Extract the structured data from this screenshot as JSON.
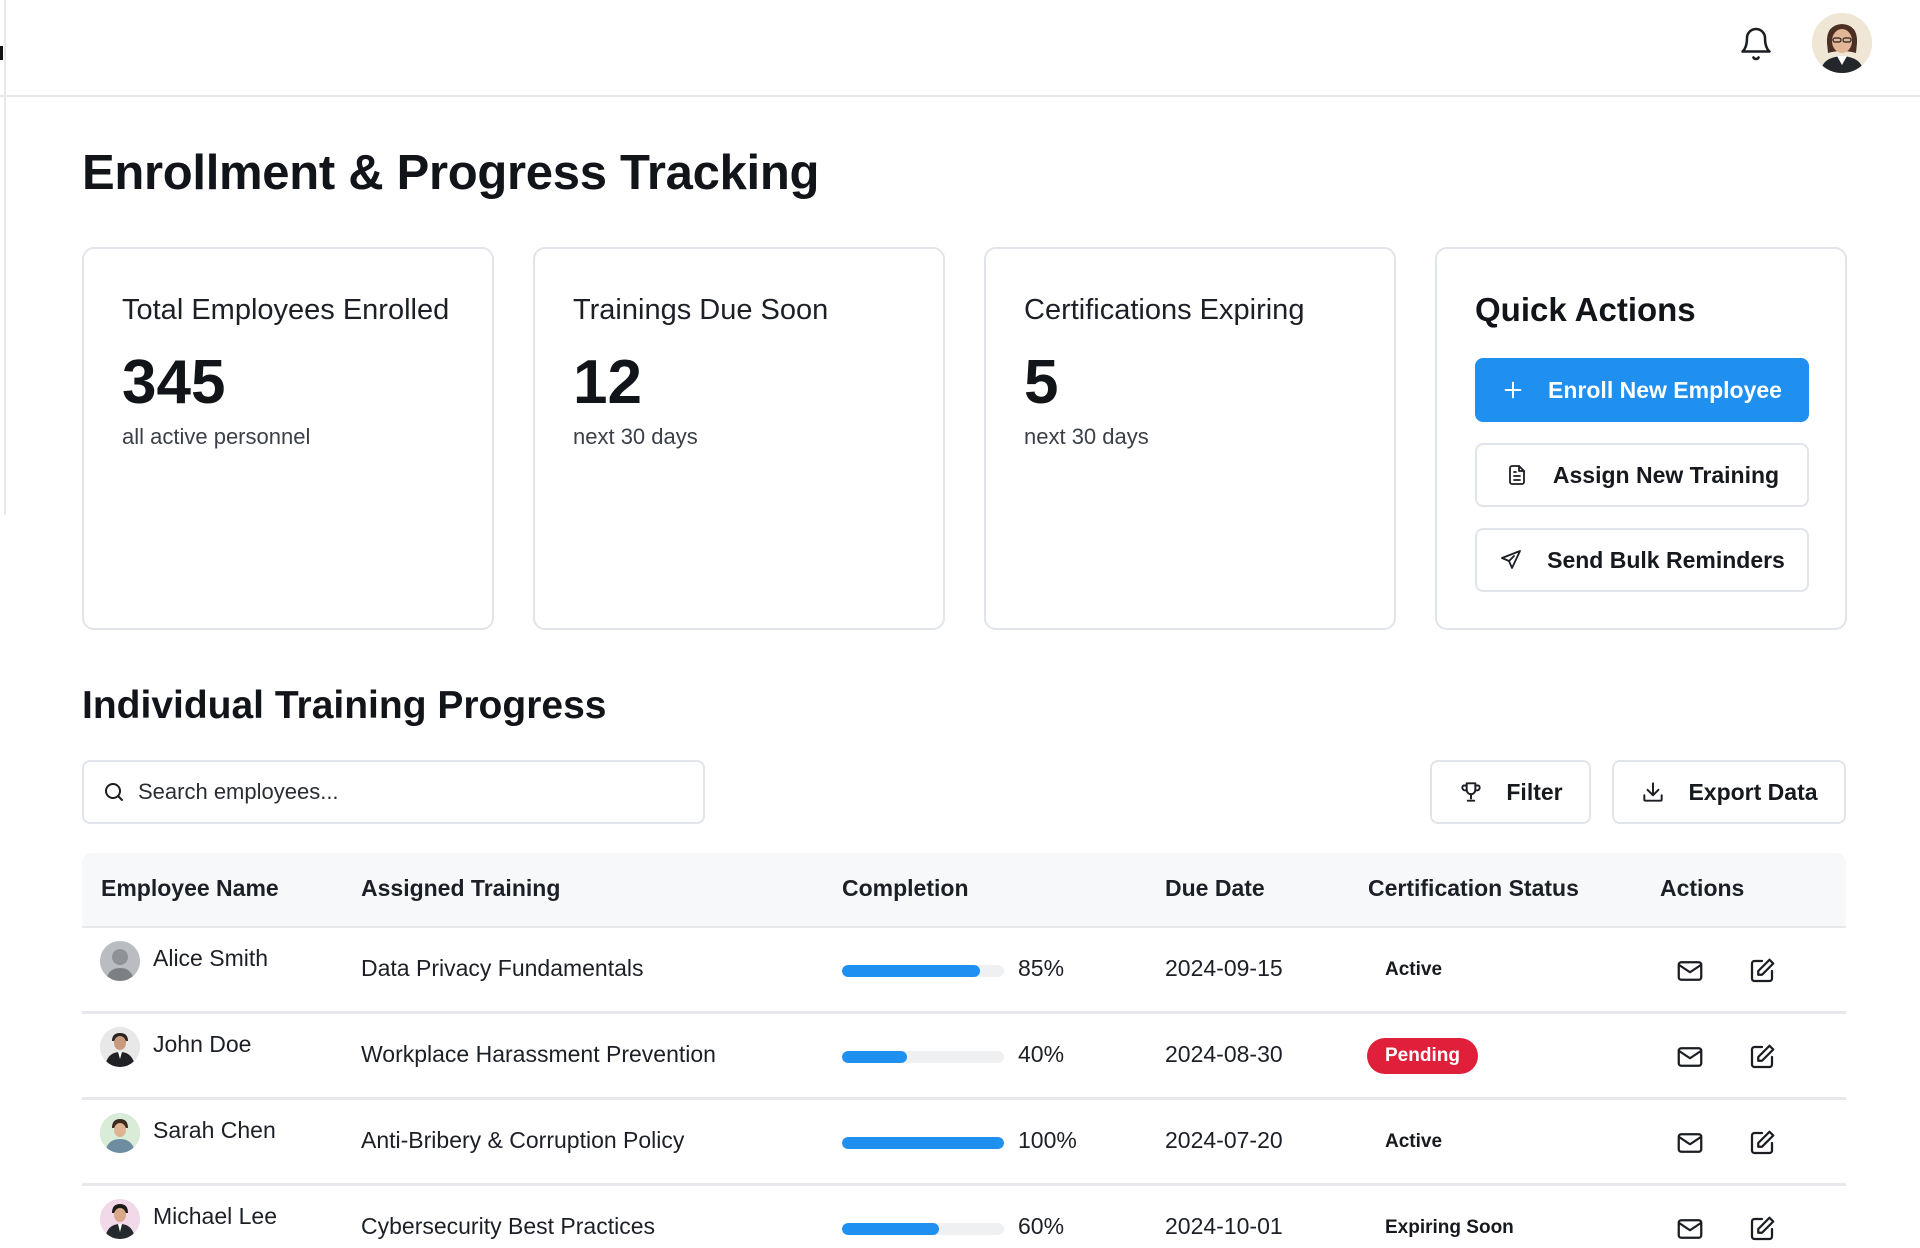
{
  "page_title": "Enrollment & Progress Tracking",
  "stats": [
    {
      "label": "Total Employees Enrolled",
      "value": "345",
      "sub": "all active personnel"
    },
    {
      "label": "Trainings Due Soon",
      "value": "12",
      "sub": "next 30 days"
    },
    {
      "label": "Certifications Expiring",
      "value": "5",
      "sub": "next 30 days"
    }
  ],
  "quick_actions": {
    "title": "Quick Actions",
    "enroll": "Enroll New Employee",
    "assign": "Assign New Training",
    "remind": "Send Bulk Reminders"
  },
  "section_title": "Individual Training Progress",
  "search": {
    "placeholder": "Search employees..."
  },
  "toolbar": {
    "filter": "Filter",
    "export": "Export Data"
  },
  "table": {
    "headers": [
      "Employee Name",
      "Assigned Training",
      "Completion",
      "Due Date",
      "Certification Status",
      "Actions"
    ],
    "rows": [
      {
        "name": "Alice Smith",
        "training": "Data Privacy Fundamentals",
        "completion": "85%",
        "progress": 0.85,
        "due": "2024-09-15",
        "status": "Active"
      },
      {
        "name": "John Doe",
        "training": "Workplace Harassment Prevention",
        "completion": "40%",
        "progress": 0.4,
        "due": "2024-08-30",
        "status": "Pending"
      },
      {
        "name": "Sarah Chen",
        "training": "Anti-Bribery & Corruption Policy",
        "completion": "100%",
        "progress": 1.0,
        "due": "2024-07-20",
        "status": "Active"
      },
      {
        "name": "Michael Lee",
        "training": "Cybersecurity Best Practices",
        "completion": "60%",
        "progress": 0.6,
        "due": "2024-10-01",
        "status": "Expiring Soon"
      }
    ]
  },
  "colors": {
    "accent": "#1f8ff0",
    "pending": "#e0203a"
  },
  "icons": {
    "notifications": "bell-icon",
    "enroll": "plus-icon",
    "assign": "document-icon",
    "remind": "send-icon",
    "search": "search-icon",
    "filter": "trophy-icon",
    "export": "download-icon",
    "email": "mail-icon",
    "edit": "edit-icon"
  }
}
